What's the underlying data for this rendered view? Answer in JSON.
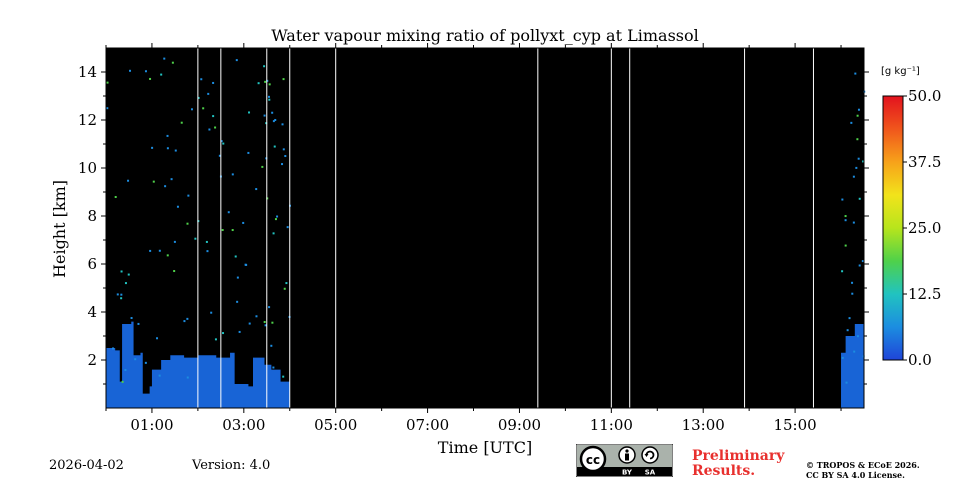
{
  "chart_data": {
    "type": "heatmap",
    "title": "Water vapour mixing ratio of pollyxt_cyp at Limassol",
    "xlabel": "Time [UTC]",
    "ylabel": "Height [km]",
    "xlim_hours": [
      0.0,
      16.5
    ],
    "ylim_km": [
      0.0,
      15.0
    ],
    "x_ticks": [
      {
        "hour": 1,
        "label": "01:00"
      },
      {
        "hour": 3,
        "label": "03:00"
      },
      {
        "hour": 5,
        "label": "05:00"
      },
      {
        "hour": 7,
        "label": "07:00"
      },
      {
        "hour": 9,
        "label": "09:00"
      },
      {
        "hour": 11,
        "label": "11:00"
      },
      {
        "hour": 13,
        "label": "13:00"
      },
      {
        "hour": 15,
        "label": "15:00"
      }
    ],
    "y_ticks": [
      {
        "km": 2,
        "label": "2"
      },
      {
        "km": 4,
        "label": "4"
      },
      {
        "km": 6,
        "label": "6"
      },
      {
        "km": 8,
        "label": "8"
      },
      {
        "km": 10,
        "label": "10"
      },
      {
        "km": 12,
        "label": "12"
      },
      {
        "km": 14,
        "label": "14"
      }
    ],
    "colorbar": {
      "unit_label": "[g kg⁻¹]",
      "vmin": 0.0,
      "vmax": 50.0,
      "ticks": [
        {
          "value": 50.0,
          "label": "50.0"
        },
        {
          "value": 37.5,
          "label": "37.5"
        },
        {
          "value": 25.0,
          "label": "25.0"
        },
        {
          "value": 12.5,
          "label": "12.5"
        },
        {
          "value": 0.0,
          "label": "0.0"
        }
      ],
      "colors": [
        "#1f44d8",
        "#1c8de0",
        "#21c3c0",
        "#4fd14a",
        "#b7e51c",
        "#f2e31b",
        "#f7a21a",
        "#f0561c",
        "#e3121e"
      ]
    },
    "no_data_color": "#000000",
    "boundary_layer_color": "#1864d6",
    "profile_gap_hours": [
      2.0,
      2.5,
      3.5,
      4.0,
      5.0,
      9.4,
      11.0,
      11.4,
      13.9,
      15.4
    ],
    "boundary_layer_top": [
      {
        "hour": 0.0,
        "km": 2.5
      },
      {
        "hour": 0.2,
        "km": 2.4
      },
      {
        "hour": 0.3,
        "km": 1.1
      },
      {
        "hour": 0.35,
        "km": 3.5
      },
      {
        "hour": 0.55,
        "km": 3.6
      },
      {
        "hour": 0.6,
        "km": 2.2
      },
      {
        "hour": 0.75,
        "km": 2.3
      },
      {
        "hour": 0.8,
        "km": 0.6
      },
      {
        "hour": 0.95,
        "km": 0.9
      },
      {
        "hour": 1.0,
        "km": 1.6
      },
      {
        "hour": 1.2,
        "km": 2.0
      },
      {
        "hour": 1.4,
        "km": 2.2
      },
      {
        "hour": 1.7,
        "km": 2.1
      },
      {
        "hour": 2.0,
        "km": 2.2
      },
      {
        "hour": 2.4,
        "km": 2.1
      },
      {
        "hour": 2.7,
        "km": 2.3
      },
      {
        "hour": 2.8,
        "km": 1.0
      },
      {
        "hour": 3.1,
        "km": 0.9
      },
      {
        "hour": 3.2,
        "km": 2.1
      },
      {
        "hour": 3.45,
        "km": 1.8
      },
      {
        "hour": 3.6,
        "km": 1.6
      },
      {
        "hour": 3.8,
        "km": 1.1
      },
      {
        "hour": 4.0,
        "km": 0.6
      },
      {
        "hour": 16.0,
        "km": 2.3
      },
      {
        "hour": 16.1,
        "km": 3.0
      },
      {
        "hour": 16.3,
        "km": 3.5
      },
      {
        "hour": 16.5,
        "km": 2.2
      }
    ],
    "data_windows_hours": [
      [
        0.0,
        4.0
      ],
      [
        16.0,
        16.5
      ]
    ]
  },
  "footer": {
    "date": "2026-04-02",
    "version": "Version: 4.0",
    "preliminary_line1": "Preliminary",
    "preliminary_line2": "Results.",
    "copyright_line1": "© TROPOS & ECoE 2026.",
    "copyright_line2": "CC BY SA 4.0 License."
  },
  "license_badge": {
    "cc": "cc",
    "by": "BY",
    "sa": "SA"
  }
}
